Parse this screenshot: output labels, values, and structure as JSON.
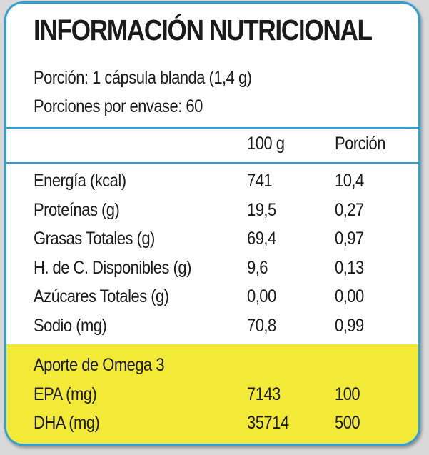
{
  "title": "INFORMACIÓN NUTRICIONAL",
  "serving": {
    "portion": "Porción: 1 cápsula blanda (1,4 g)",
    "servings": "Porciones por envase:   60"
  },
  "columns": {
    "per100": "100 g",
    "portion": "Porción"
  },
  "rows": [
    {
      "name": "Energía (kcal)",
      "per100": "741",
      "portion": "10,4"
    },
    {
      "name": "Proteínas (g)",
      "per100": "19,5",
      "portion": "0,27"
    },
    {
      "name": "Grasas Totales (g)",
      "per100": "69,4",
      "portion": "0,97"
    },
    {
      "name": "H. de C. Disponibles (g)",
      "per100": "9,6",
      "portion": "0,13"
    },
    {
      "name": "Azúcares Totales (g)",
      "per100": "0,00",
      "portion": "0,00"
    },
    {
      "name": "Sodio (mg)",
      "per100": "70,8",
      "portion": "0,99"
    }
  ],
  "omega": {
    "heading": "Aporte de Omega 3",
    "rows": [
      {
        "name": "EPA (mg)",
        "per100": "7143",
        "portion": "100"
      },
      {
        "name": "DHA (mg)",
        "per100": "35714",
        "portion": "500"
      }
    ]
  },
  "colors": {
    "border": "#2f9fd4",
    "highlight": "#f3ea37",
    "text": "#1b1b1b"
  }
}
